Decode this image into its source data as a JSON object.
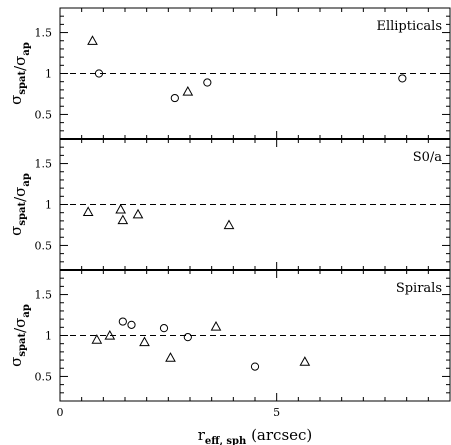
{
  "chart_data": {
    "type": "scatter",
    "xlim": [
      0,
      9
    ],
    "x_ticks": [
      0,
      5
    ],
    "x_tick_labels": [
      "0",
      "5"
    ],
    "x_minor_step": 0.5,
    "xlabel_main": "r",
    "xlabel_sub": "eff, sph",
    "xlabel_unit": "(arcsec)",
    "ylabel_main": "σ",
    "ylabel_num_sub": "spat",
    "ylabel_slash": "/",
    "ylabel_den_sub": "ap",
    "ylim": [
      0.2,
      1.8
    ],
    "y_ticks": [
      0.5,
      1,
      1.5
    ],
    "y_tick_labels": [
      "0.5",
      "1",
      "1.5"
    ],
    "y_minor_step": 0.1,
    "reference_line": 1,
    "reference_style": "dashed",
    "panels": [
      {
        "title": "Ellipticals",
        "series": [
          {
            "marker": "triangle",
            "points": [
              [
                0.75,
                1.4
              ],
              [
                2.95,
                0.78
              ]
            ]
          },
          {
            "marker": "circle",
            "points": [
              [
                0.9,
                1.0
              ],
              [
                2.65,
                0.7
              ],
              [
                3.4,
                0.89
              ],
              [
                7.9,
                0.94
              ]
            ]
          }
        ]
      },
      {
        "title": "S0/a",
        "series": [
          {
            "marker": "triangle",
            "points": [
              [
                0.65,
                0.91
              ],
              [
                1.4,
                0.94
              ],
              [
                1.45,
                0.81
              ],
              [
                1.8,
                0.88
              ],
              [
                3.9,
                0.75
              ]
            ]
          },
          {
            "marker": "circle",
            "points": []
          }
        ]
      },
      {
        "title": "Spirals",
        "series": [
          {
            "marker": "triangle",
            "points": [
              [
                0.85,
                0.95
              ],
              [
                1.15,
                1.0
              ],
              [
                1.95,
                0.92
              ],
              [
                2.55,
                0.73
              ],
              [
                3.6,
                1.11
              ],
              [
                5.65,
                0.68
              ]
            ]
          },
          {
            "marker": "circle",
            "points": [
              [
                1.45,
                1.17
              ],
              [
                1.65,
                1.13
              ],
              [
                2.4,
                1.09
              ],
              [
                2.95,
                0.98
              ],
              [
                4.5,
                0.62
              ]
            ]
          }
        ]
      }
    ]
  }
}
